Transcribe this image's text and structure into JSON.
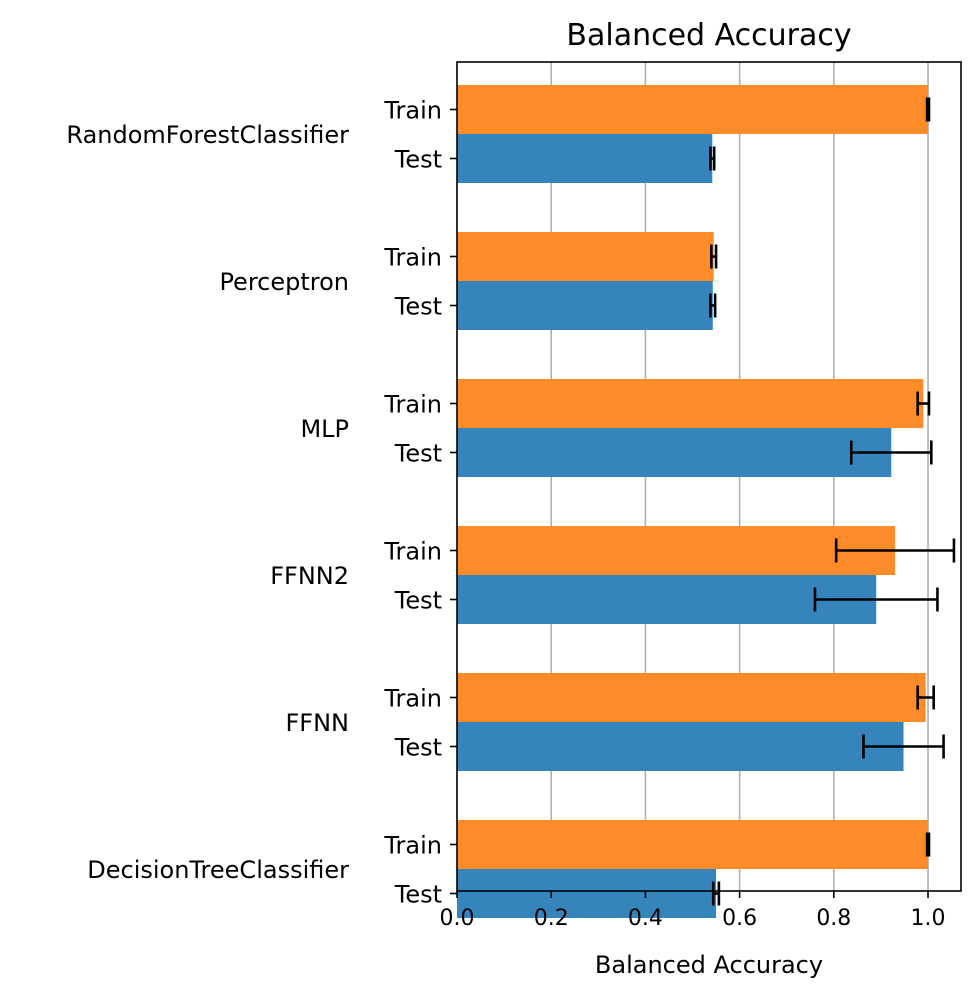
{
  "chart_data": {
    "type": "bar",
    "orientation": "horizontal",
    "title": "Balanced Accuracy",
    "xlabel": "Balanced Accuracy",
    "ylabel": "",
    "xlim": [
      0.0,
      1.07
    ],
    "xticks": [
      "0.0",
      "0.2",
      "0.4",
      "0.6",
      "0.8",
      "1.0"
    ],
    "grid": "x",
    "split_labels": {
      "train": "Train",
      "test": "Test"
    },
    "colors": {
      "train": "#ff8c28",
      "test": "#3684bc"
    },
    "categories": [
      "RandomForestClassifier",
      "Perceptron",
      "MLP",
      "FFNN2",
      "FFNN",
      "DecisionTreeClassifier"
    ],
    "series": [
      {
        "key": "train",
        "values": [
          1.0,
          0.545,
          0.99,
          0.93,
          0.995,
          1.0
        ],
        "errors": [
          0.002,
          0.005,
          0.012,
          0.125,
          0.017,
          0.002
        ]
      },
      {
        "key": "test",
        "values": [
          0.542,
          0.543,
          0.922,
          0.89,
          0.948,
          0.55
        ],
        "errors": [
          0.004,
          0.005,
          0.085,
          0.13,
          0.085,
          0.006
        ]
      }
    ]
  }
}
